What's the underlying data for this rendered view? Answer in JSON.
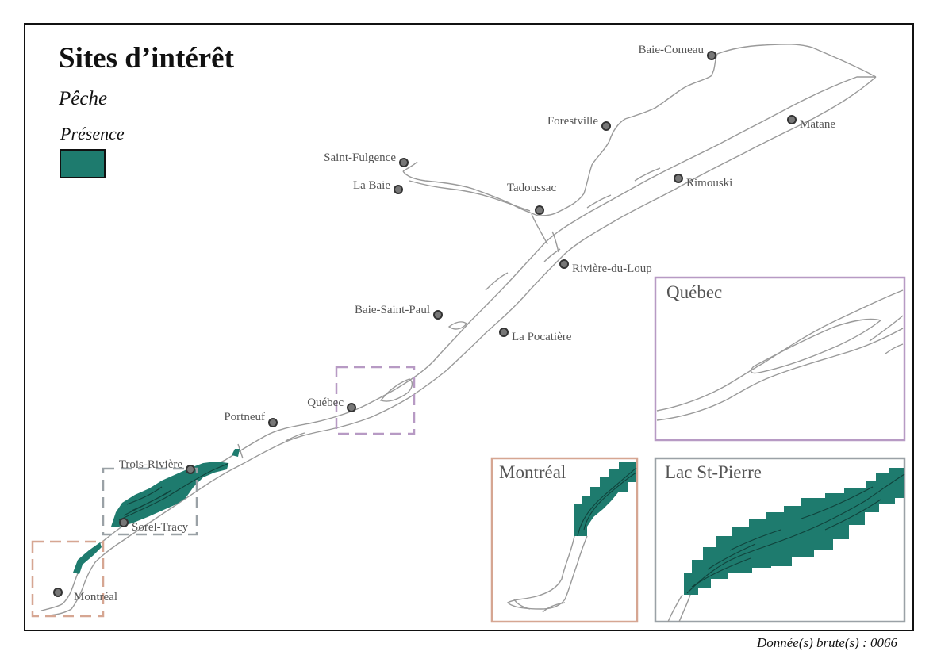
{
  "title": "Sites d’intérêt",
  "subtitle": "Pêche",
  "legend": {
    "label": "Présence",
    "color": "#1e7b6e"
  },
  "footer": "Donnée(s) brute(s) : 0066",
  "cities": [
    {
      "name": "Baie-Comeau"
    },
    {
      "name": "Forestville"
    },
    {
      "name": "Matane"
    },
    {
      "name": "Saint-Fulgence"
    },
    {
      "name": "La Baie"
    },
    {
      "name": "Tadoussac"
    },
    {
      "name": "Rimouski"
    },
    {
      "name": "Rivière-du-Loup"
    },
    {
      "name": "Baie-Saint-Paul"
    },
    {
      "name": "La Pocatière"
    },
    {
      "name": "Québec"
    },
    {
      "name": "Portneuf"
    },
    {
      "name": "Trois-Rivière"
    },
    {
      "name": "Sorel-Tracy"
    },
    {
      "name": "Montréal"
    }
  ],
  "insets": {
    "quebec": {
      "title": "Québec",
      "border": "#b79ac4"
    },
    "montreal": {
      "title": "Montréal",
      "border": "#d6a692"
    },
    "lac": {
      "title": "Lac St-Pierre",
      "border": "#9aa1a6"
    }
  }
}
